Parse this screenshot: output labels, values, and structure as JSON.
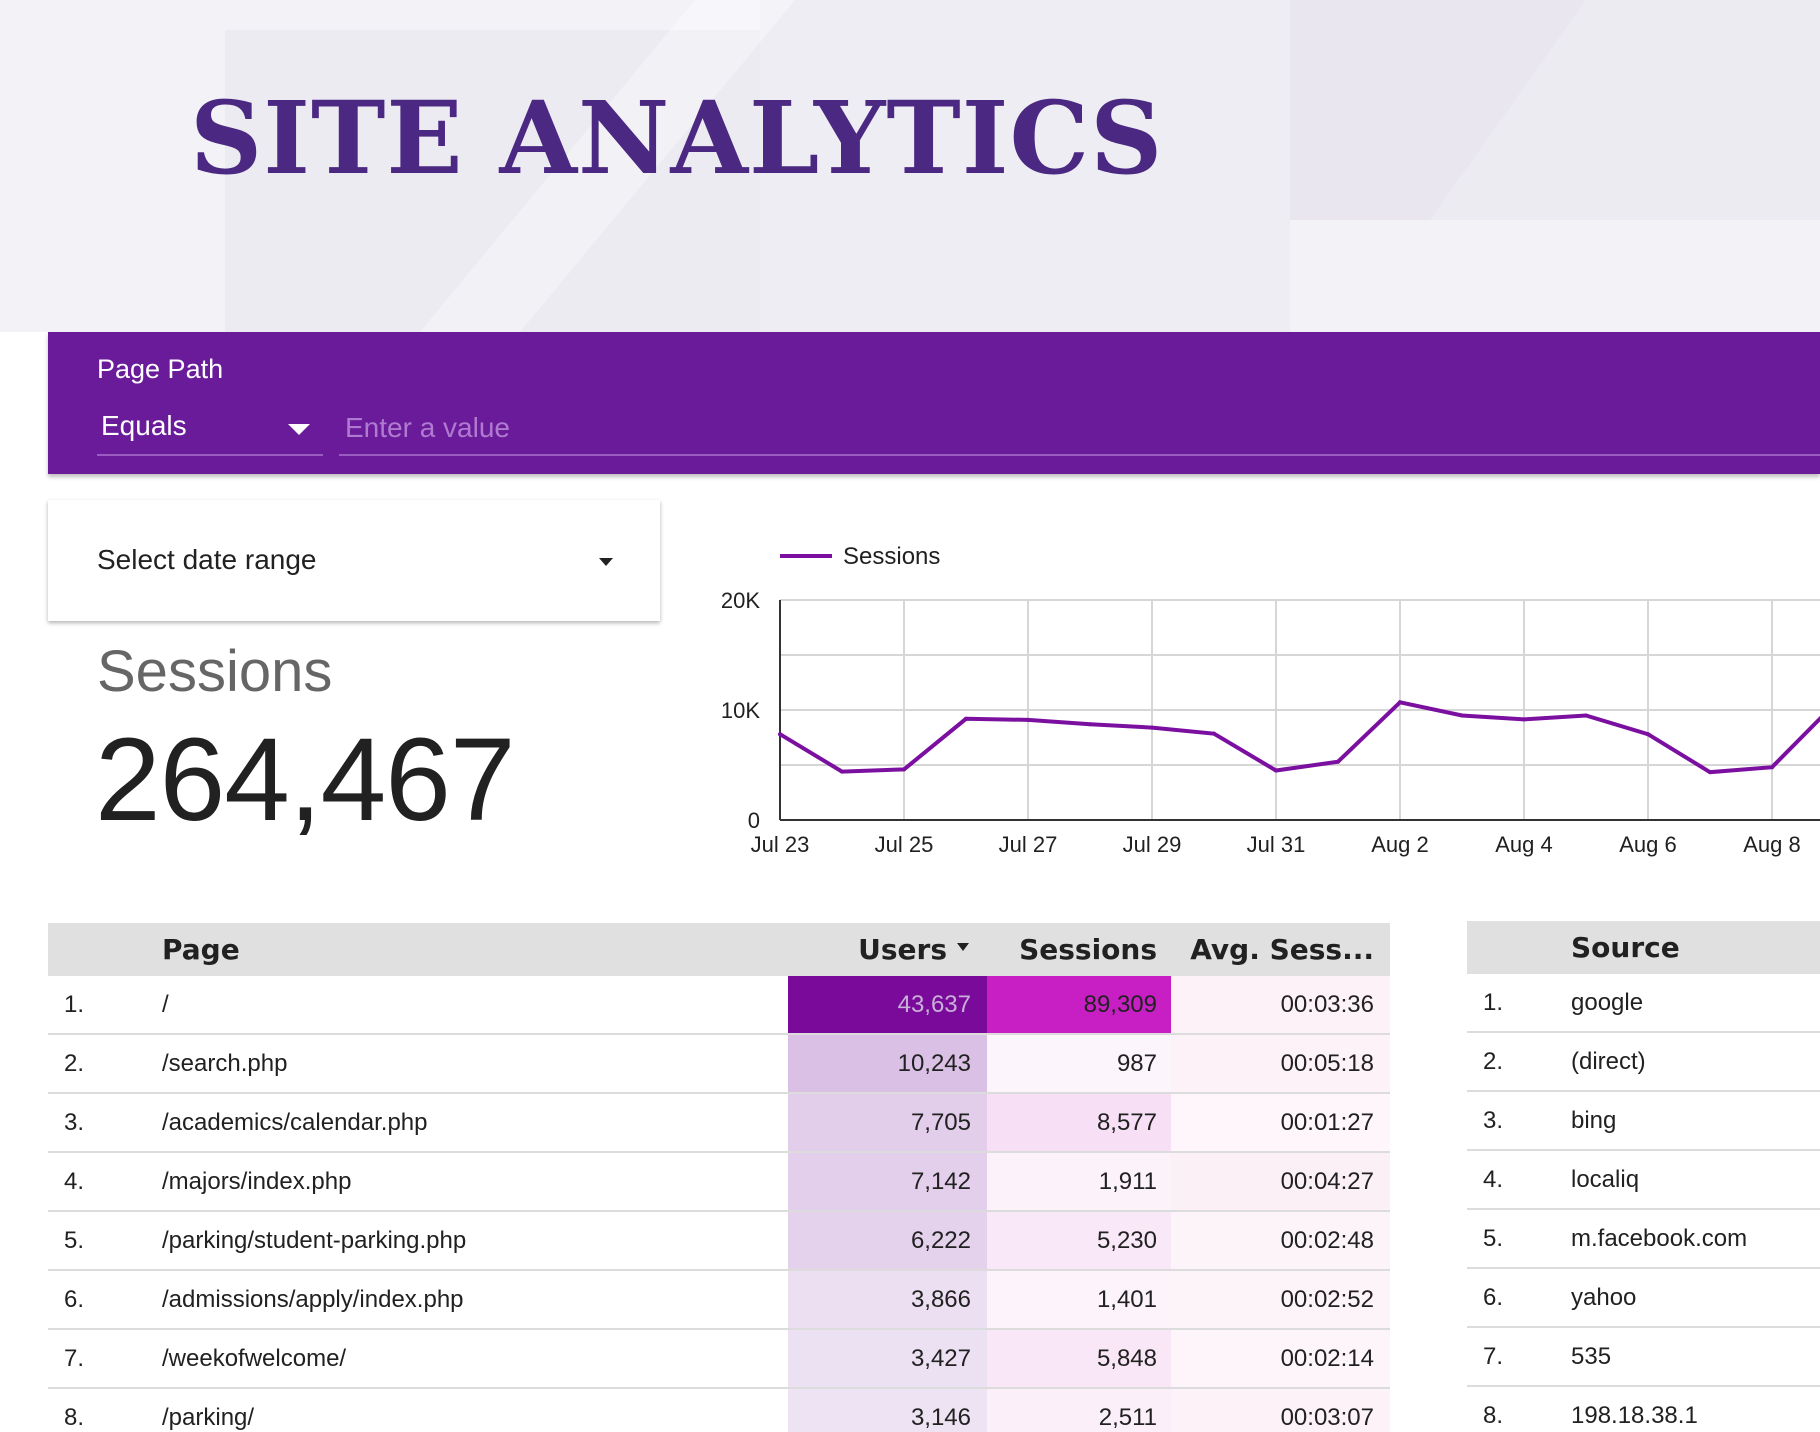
{
  "header": {
    "title": "SITE ANALYTICS"
  },
  "filter": {
    "label": "Page Path",
    "operator": "Equals",
    "value": "",
    "placeholder": "Enter a value"
  },
  "date_range": {
    "label": "Select date range"
  },
  "kpi": {
    "label": "Sessions",
    "value": "264,467"
  },
  "colors": {
    "brand_purple": "#6a1b9a",
    "title_purple": "#4b2882",
    "line": "#7b0fa0",
    "users_heat": "#7a0a9a",
    "sessions_heat": "#c81fc4"
  },
  "chart_data": {
    "type": "line",
    "title": "",
    "legend": {
      "entries": [
        "Sessions"
      ],
      "position": "top-left"
    },
    "xlabel": "",
    "ylabel": "",
    "ylim": [
      0,
      20000
    ],
    "y_ticks": [
      "0",
      "10K",
      "20K"
    ],
    "x_tick_labels": [
      "Jul 23",
      "Jul 25",
      "Jul 27",
      "Jul 29",
      "Jul 31",
      "Aug 2",
      "Aug 4",
      "Aug 6",
      "Aug 8"
    ],
    "x": [
      "Jul 23",
      "Jul 24",
      "Jul 25",
      "Jul 26",
      "Jul 27",
      "Jul 28",
      "Jul 29",
      "Jul 30",
      "Jul 31",
      "Aug 1",
      "Aug 2",
      "Aug 3",
      "Aug 4",
      "Aug 5",
      "Aug 6",
      "Aug 7",
      "Aug 8",
      "Aug 9"
    ],
    "series": [
      {
        "name": "Sessions",
        "values": [
          7800,
          4400,
          4600,
          9200,
          9100,
          8700,
          8400,
          7850,
          4500,
          5300,
          10700,
          9500,
          9150,
          9500,
          7800,
          4350,
          4800,
          10500
        ]
      }
    ],
    "grid": true
  },
  "pages_table": {
    "columns": [
      {
        "label": "Page"
      },
      {
        "label": "Users",
        "sorted": "desc"
      },
      {
        "label": "Sessions"
      },
      {
        "label": "Avg. Sess..."
      }
    ],
    "rows": [
      {
        "idx": "1.",
        "page": "/",
        "users": "43,637",
        "sessions": "89,309",
        "avg": "00:03:36",
        "users_bg": "#7a0a9a",
        "users_fg": "#c8b0d8",
        "sessions_bg": "#c81fc4",
        "sessions_fg": "#212121",
        "avg_bg": "#fdf2f8"
      },
      {
        "idx": "2.",
        "page": "/search.php",
        "users": "10,243",
        "sessions": "987",
        "avg": "00:05:18",
        "users_bg": "#dbc0e6",
        "users_fg": "#212121",
        "sessions_bg": "#fcf5fb",
        "sessions_fg": "#212121",
        "avg_bg": "#fdf2f8"
      },
      {
        "idx": "3.",
        "page": "/academics/calendar.php",
        "users": "7,705",
        "sessions": "8,577",
        "avg": "00:01:27",
        "users_bg": "#e2cdea",
        "users_fg": "#212121",
        "sessions_bg": "#f7e0f5",
        "sessions_fg": "#212121",
        "avg_bg": "#fef6fa"
      },
      {
        "idx": "4.",
        "page": "/majors/index.php",
        "users": "7,142",
        "sessions": "1,911",
        "avg": "00:04:27",
        "users_bg": "#e3cfeb",
        "users_fg": "#212121",
        "sessions_bg": "#fcf2fa",
        "sessions_fg": "#212121",
        "avg_bg": "#fcf0f7"
      },
      {
        "idx": "5.",
        "page": "/parking/student-parking.php",
        "users": "6,222",
        "sessions": "5,230",
        "avg": "00:02:48",
        "users_bg": "#e4d2ec",
        "users_fg": "#212121",
        "sessions_bg": "#f9e8f7",
        "sessions_fg": "#212121",
        "avg_bg": "#fdf4f9"
      },
      {
        "idx": "6.",
        "page": "/admissions/apply/index.php",
        "users": "3,866",
        "sessions": "1,401",
        "avg": "00:02:52",
        "users_bg": "#ebdff1",
        "users_fg": "#212121",
        "sessions_bg": "#fdf3fb",
        "sessions_fg": "#212121",
        "avg_bg": "#fdf4f9"
      },
      {
        "idx": "7.",
        "page": "/weekofwelcome/",
        "users": "3,427",
        "sessions": "5,848",
        "avg": "00:02:14",
        "users_bg": "#ece1f2",
        "users_fg": "#212121",
        "sessions_bg": "#f9e7f7",
        "sessions_fg": "#212121",
        "avg_bg": "#fdf5fa"
      },
      {
        "idx": "8.",
        "page": "/parking/",
        "users": "3,146",
        "sessions": "2,511",
        "avg": "00:03:07",
        "users_bg": "#ede3f2",
        "users_fg": "#212121",
        "sessions_bg": "#fbf0f9",
        "sessions_fg": "#212121",
        "avg_bg": "#fdf2f8"
      }
    ]
  },
  "source_table": {
    "columns": [
      {
        "label": "Source"
      }
    ],
    "rows": [
      {
        "idx": "1.",
        "source": "google"
      },
      {
        "idx": "2.",
        "source": "(direct)"
      },
      {
        "idx": "3.",
        "source": "bing"
      },
      {
        "idx": "4.",
        "source": "localiq"
      },
      {
        "idx": "5.",
        "source": "m.facebook.com"
      },
      {
        "idx": "6.",
        "source": "yahoo"
      },
      {
        "idx": "7.",
        "source": "535"
      },
      {
        "idx": "8.",
        "source": "198.18.38.1"
      }
    ]
  }
}
